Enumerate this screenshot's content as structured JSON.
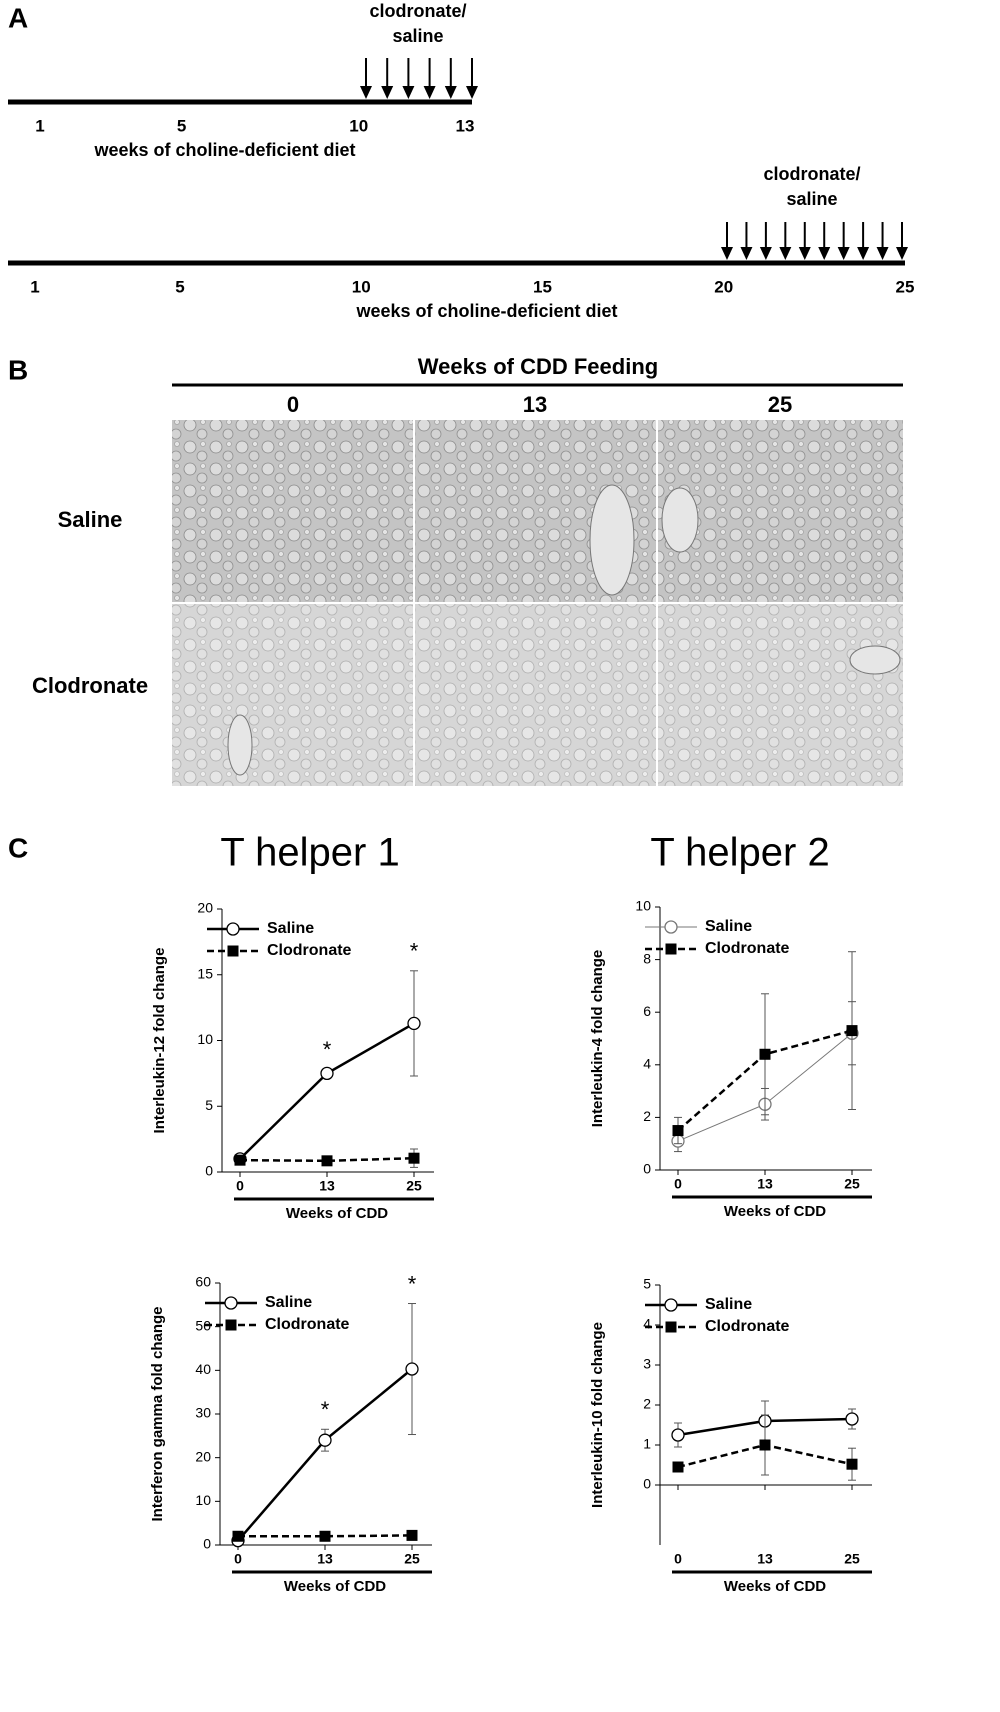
{
  "panel_a": {
    "label": "A",
    "timelines": [
      {
        "annotation": [
          "clodronate/",
          "saline"
        ],
        "ticks": [
          1,
          5,
          10,
          13
        ],
        "axis_label": "weeks of choline-deficient diet"
      },
      {
        "annotation": [
          "clodronate/",
          "saline"
        ],
        "ticks": [
          1,
          5,
          10,
          15,
          20,
          25
        ],
        "axis_label": "weeks of choline-deficient diet"
      }
    ]
  },
  "panel_b": {
    "label": "B",
    "title": "Weeks of CDD Feeding",
    "columns": [
      "0",
      "13",
      "25"
    ],
    "rows": [
      "Saline",
      "Clodronate"
    ]
  },
  "panel_c": {
    "label": "C",
    "groups": [
      "T helper 1",
      "T helper 2"
    ]
  },
  "chart_data": [
    {
      "type": "line",
      "y_label": "Interleukin-12 fold change",
      "x_label": "Weeks of CDD",
      "categories": [
        "0",
        "13",
        "25"
      ],
      "ylim": [
        0,
        20
      ],
      "yticks": [
        0,
        5,
        10,
        15,
        20
      ],
      "legend": "upper left",
      "series": [
        {
          "name": "Saline",
          "color": "#000000",
          "line": "solid",
          "marker": "circle",
          "values": [
            1,
            7.5,
            11.3
          ],
          "errors": [
            0.1,
            0.3,
            4
          ]
        },
        {
          "name": "Clodronate",
          "color": "#000000",
          "line": "dashed",
          "marker": "square",
          "values": [
            0.9,
            0.85,
            1.05
          ],
          "errors": [
            0.1,
            0.1,
            0.7
          ]
        }
      ],
      "annotations": [
        {
          "text": "*",
          "x": "13"
        },
        {
          "text": "*",
          "x": "25"
        }
      ]
    },
    {
      "type": "line",
      "y_label": "Interleukin-4 fold change",
      "x_label": "Weeks of CDD",
      "categories": [
        "0",
        "13",
        "25"
      ],
      "ylim": [
        0,
        10
      ],
      "yticks": [
        0,
        2,
        4,
        6,
        8,
        10
      ],
      "legend": "upper left",
      "series": [
        {
          "name": "Saline",
          "color": "#777777",
          "line": "thin",
          "marker": "circle",
          "values": [
            1.1,
            2.5,
            5.2
          ],
          "errors": [
            0.4,
            0.6,
            1.2
          ]
        },
        {
          "name": "Clodronate",
          "color": "#000000",
          "line": "dashed",
          "marker": "square",
          "values": [
            1.5,
            4.4,
            5.3
          ],
          "errors": [
            0.5,
            2.3,
            3.0
          ]
        }
      ]
    },
    {
      "type": "line",
      "y_label": "Interferon gamma fold change",
      "x_label": "Weeks of CDD",
      "categories": [
        "0",
        "13",
        "25"
      ],
      "ylim": [
        0,
        60
      ],
      "yticks": [
        0,
        10,
        20,
        30,
        40,
        50,
        60
      ],
      "legend": "upper left",
      "series": [
        {
          "name": "Saline",
          "color": "#000000",
          "line": "solid",
          "marker": "circle",
          "values": [
            1,
            24,
            40.3
          ],
          "errors": [
            0.5,
            2.5,
            15
          ]
        },
        {
          "name": "Clodronate",
          "color": "#000000",
          "line": "dashed",
          "marker": "square",
          "values": [
            2,
            2,
            2.2
          ],
          "errors": [
            0.3,
            0.3,
            0.3
          ]
        }
      ],
      "annotations": [
        {
          "text": "*",
          "x": "13"
        },
        {
          "text": "*",
          "x": "25"
        }
      ]
    },
    {
      "type": "line",
      "y_label": "Interleukin-10 fold change",
      "x_label": "Weeks of CDD",
      "categories": [
        "0",
        "13",
        "25"
      ],
      "ylim": [
        -1.5,
        5
      ],
      "yticks": [
        0,
        1,
        2,
        3,
        4,
        5
      ],
      "legend": "upper left",
      "series": [
        {
          "name": "Saline",
          "color": "#000000",
          "line": "solid",
          "marker": "circle",
          "values": [
            1.25,
            1.6,
            1.65
          ],
          "errors": [
            0.3,
            0.5,
            0.25
          ]
        },
        {
          "name": "Clodronate",
          "color": "#000000",
          "line": "dashed",
          "marker": "square",
          "values": [
            0.45,
            1.0,
            0.52
          ],
          "errors": [
            0.05,
            0.75,
            0.4
          ]
        }
      ]
    }
  ]
}
